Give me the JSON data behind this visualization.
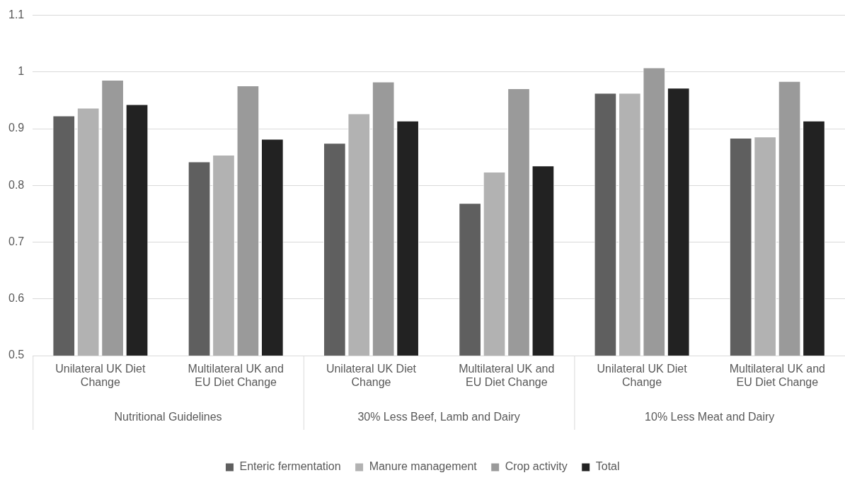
{
  "chart_data": {
    "type": "bar",
    "categories": [
      "Unilateral UK Diet Change",
      "Multilateral UK and EU Diet Change",
      "Unilateral UK Diet Change",
      "Multilateral UK and EU Diet Change",
      "Unilateral UK Diet Change",
      "Multilateral UK and EU Diet Change"
    ],
    "annotations": [
      "Nutritional Guidelines",
      "30% Less Beef, Lamb and Dairy",
      "10% Less Meat and Dairy"
    ],
    "series": [
      {
        "name": "Enteric fermentation",
        "color": "#5f5f5f",
        "values": [
          0.923,
          0.842,
          0.875,
          0.769,
          0.963,
          0.884
        ]
      },
      {
        "name": "Manure management",
        "color": "#b2b2b2",
        "values": [
          0.937,
          0.854,
          0.927,
          0.824,
          0.963,
          0.886
        ]
      },
      {
        "name": "Crop activity",
        "color": "#9a9a9a",
        "values": [
          0.986,
          0.976,
          0.983,
          0.971,
          1.008,
          0.984
        ]
      },
      {
        "name": "Total",
        "color": "#222222",
        "values": [
          0.943,
          0.882,
          0.914,
          0.835,
          0.972,
          0.914
        ]
      }
    ],
    "ylim": [
      0.5,
      1.1
    ],
    "yticks": [
      0.5,
      0.6,
      0.7,
      0.8,
      0.9,
      1,
      1.1
    ],
    "grid": "y",
    "legend": "bottom"
  }
}
